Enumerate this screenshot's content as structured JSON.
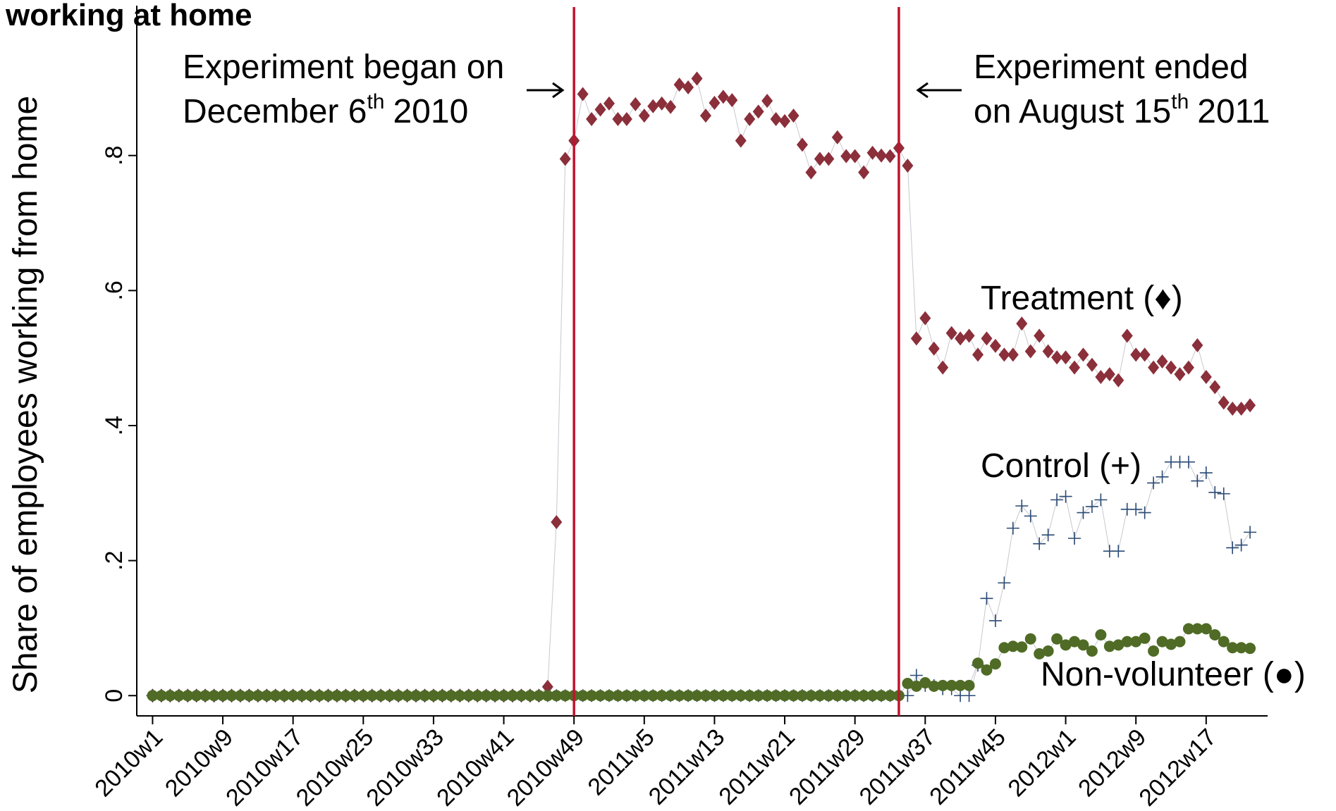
{
  "chart_data": {
    "type": "scatter",
    "title": "working at home",
    "y_label": "Share of employees working from home",
    "x": [
      0,
      1,
      2,
      3,
      4,
      5,
      6,
      7,
      8,
      9,
      10,
      11,
      12,
      13,
      14,
      15,
      16,
      17,
      18,
      19,
      20,
      21,
      22,
      23,
      24,
      25,
      26,
      27,
      28,
      29,
      30,
      31,
      32,
      33,
      34,
      35,
      36,
      37,
      38,
      39,
      40,
      41,
      42,
      43,
      44,
      45,
      46,
      47,
      48,
      49,
      50,
      51,
      52,
      53,
      54,
      55,
      56,
      57,
      58,
      59,
      60,
      61,
      62,
      63,
      64,
      65,
      66,
      67,
      68,
      69,
      70,
      71,
      72,
      73,
      74,
      75,
      76,
      77,
      78,
      79,
      80,
      81,
      82,
      83,
      84,
      85,
      86,
      87,
      88,
      89,
      90,
      91,
      92,
      93,
      94,
      95,
      96,
      97,
      98,
      99,
      100,
      101,
      102,
      103,
      104,
      105,
      106,
      107,
      108,
      109,
      110,
      111,
      112,
      113,
      114,
      115,
      116,
      117,
      118,
      119,
      120,
      121,
      122,
      123,
      124,
      125
    ],
    "xlim": [
      -1.8,
      127
    ],
    "xticks": [
      {
        "value": 0,
        "label": "2010w1"
      },
      {
        "value": 8,
        "label": "2010w9"
      },
      {
        "value": 16,
        "label": "2010w17"
      },
      {
        "value": 24,
        "label": "2010w25"
      },
      {
        "value": 32,
        "label": "2010w33"
      },
      {
        "value": 40,
        "label": "2010w41"
      },
      {
        "value": 48,
        "label": "2010w49"
      },
      {
        "value": 56,
        "label": "2011w5"
      },
      {
        "value": 64,
        "label": "2011w13"
      },
      {
        "value": 72,
        "label": "2011w21"
      },
      {
        "value": 80,
        "label": "2011w29"
      },
      {
        "value": 88,
        "label": "2011w37"
      },
      {
        "value": 96,
        "label": "2011w45"
      },
      {
        "value": 104,
        "label": "2012w1"
      },
      {
        "value": 112,
        "label": "2012w9"
      },
      {
        "value": 120,
        "label": "2012w17"
      }
    ],
    "ylim": [
      -0.03,
      1.022
    ],
    "yticks": [
      0,
      {
        "value": 0.2,
        "label": ".2"
      },
      {
        "value": 0.4,
        "label": ".4"
      },
      {
        "value": 0.6,
        "label": ".6"
      },
      {
        "value": 0.8,
        "label": ".8"
      }
    ],
    "series": [
      {
        "name": "Treatment (♦)",
        "color": "#8b2f3a",
        "marker": "diamond",
        "values": [
          0,
          0,
          0,
          0,
          0,
          0,
          0,
          0,
          0,
          0,
          0,
          0,
          0,
          0,
          0,
          0,
          0,
          0,
          0,
          0,
          0,
          0,
          0,
          0,
          0,
          0,
          0,
          0,
          0,
          0,
          0,
          0,
          0,
          0,
          0,
          0,
          0,
          0,
          0,
          0,
          0,
          0,
          0,
          0,
          0,
          0.013,
          0.257,
          0.795,
          0.822,
          0.891,
          0.854,
          0.868,
          0.877,
          0.854,
          0.854,
          0.876,
          0.859,
          0.873,
          0.877,
          0.872,
          0.905,
          0.901,
          0.914,
          0.859,
          0.878,
          0.887,
          0.882,
          0.822,
          0.854,
          0.865,
          0.881,
          0.854,
          0.851,
          0.859,
          0.816,
          0.775,
          0.795,
          0.795,
          0.827,
          0.799,
          0.799,
          0.775,
          0.804,
          0.8,
          0.799,
          0.811,
          0.785,
          0.529,
          0.559,
          0.514,
          0.486,
          0.537,
          0.529,
          0.533,
          0.505,
          0.529,
          0.518,
          0.505,
          0.505,
          0.551,
          0.51,
          0.533,
          0.51,
          0.501,
          0.501,
          0.486,
          0.505,
          0.49,
          0.472,
          0.476,
          0.467,
          0.533,
          0.505,
          0.505,
          0.486,
          0.495,
          0.486,
          0.476,
          0.486,
          0.519,
          0.472,
          0.457,
          0.434,
          0.425,
          0.425,
          0.43
        ]
      },
      {
        "name": "Control (+)",
        "color": "#2a4a74",
        "marker": "plus",
        "values": [
          0,
          0,
          0,
          0,
          0,
          0,
          0,
          0,
          0,
          0,
          0,
          0,
          0,
          0,
          0,
          0,
          0,
          0,
          0,
          0,
          0,
          0,
          0,
          0,
          0,
          0,
          0,
          0,
          0,
          0,
          0,
          0,
          0,
          0,
          0,
          0,
          0,
          0,
          0,
          0,
          0,
          0,
          0,
          0,
          0,
          0,
          0,
          0,
          0,
          0,
          0,
          0,
          0,
          0,
          0,
          0,
          0,
          0,
          0,
          0,
          0,
          0,
          0,
          0,
          0,
          0,
          0,
          0,
          0,
          0,
          0,
          0,
          0,
          0,
          0,
          0,
          0,
          0,
          0,
          0,
          0,
          0,
          0,
          0,
          0,
          0,
          0,
          0.03,
          0.015,
          0.015,
          0.01,
          0.01,
          0,
          0,
          0.045,
          0.144,
          0.111,
          0.167,
          0.248,
          0.281,
          0.266,
          0.225,
          0.238,
          0.29,
          0.295,
          0.233,
          0.271,
          0.28,
          0.29,
          0.214,
          0.214,
          0.276,
          0.276,
          0.271,
          0.315,
          0.324,
          0.346,
          0.346,
          0.346,
          0.318,
          0.33,
          0.301,
          0.299,
          0.219,
          0.223,
          0.242
        ]
      },
      {
        "name": "Non-volunteer (●)",
        "color": "#4f6b25",
        "marker": "circle",
        "values": [
          0,
          0,
          0,
          0,
          0,
          0,
          0,
          0,
          0,
          0,
          0,
          0,
          0,
          0,
          0,
          0,
          0,
          0,
          0,
          0,
          0,
          0,
          0,
          0,
          0,
          0,
          0,
          0,
          0,
          0,
          0,
          0,
          0,
          0,
          0,
          0,
          0,
          0,
          0,
          0,
          0,
          0,
          0,
          0,
          0,
          0,
          0,
          0,
          0,
          0,
          0,
          0,
          0,
          0,
          0,
          0,
          0,
          0,
          0,
          0,
          0,
          0,
          0,
          0,
          0,
          0,
          0,
          0,
          0,
          0,
          0,
          0,
          0,
          0,
          0,
          0,
          0,
          0,
          0,
          0,
          0,
          0,
          0,
          0,
          0,
          0,
          0.018,
          0.014,
          0.019,
          0.014,
          0.015,
          0.015,
          0.015,
          0.015,
          0.048,
          0.038,
          0.047,
          0.071,
          0.073,
          0.072,
          0.084,
          0.062,
          0.066,
          0.084,
          0.075,
          0.08,
          0.075,
          0.066,
          0.09,
          0.073,
          0.075,
          0.08,
          0.08,
          0.085,
          0.066,
          0.08,
          0.076,
          0.08,
          0.099,
          0.099,
          0.099,
          0.09,
          0.08,
          0.071,
          0.071,
          0.07
        ]
      }
    ],
    "annotations": [
      {
        "x": 48,
        "line1": "Experiment began on",
        "line2": "December 6",
        "sup": "th",
        "line2_end": "2010"
      },
      {
        "x": 85,
        "line1": "Experiment ended",
        "line2": "on August 15",
        "sup": "th",
        "line2_end": "2011"
      }
    ],
    "vline_color": "#c0142f"
  }
}
